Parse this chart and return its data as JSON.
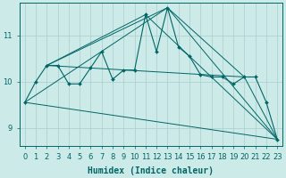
{
  "background_color": "#cceae8",
  "grid_color": "#aacccc",
  "line_color": "#006666",
  "xlabel": "Humidex (Indice chaleur)",
  "xlabel_fontsize": 7,
  "tick_fontsize": 6,
  "yticks": [
    9,
    10,
    11
  ],
  "xlim": [
    -0.5,
    23.5
  ],
  "ylim": [
    8.6,
    11.7
  ],
  "series": [
    {
      "x": [
        0,
        1,
        2,
        3,
        4,
        5,
        6,
        7,
        8,
        9,
        10,
        11,
        12,
        13,
        14,
        15,
        16,
        17,
        18,
        19,
        20,
        21,
        22,
        23
      ],
      "y": [
        9.55,
        10.0,
        10.35,
        10.35,
        9.95,
        9.95,
        10.3,
        10.65,
        10.05,
        10.25,
        10.25,
        11.45,
        10.65,
        11.6,
        10.75,
        10.55,
        10.15,
        10.1,
        10.1,
        9.95,
        10.1,
        10.1,
        9.55,
        8.75
      ],
      "marker": "D",
      "markersize": 2.0,
      "linewidth": 0.8
    },
    {
      "x": [
        0,
        13,
        23
      ],
      "y": [
        9.55,
        11.6,
        8.75
      ],
      "marker": null,
      "markersize": 0,
      "linewidth": 0.7
    },
    {
      "comment": "straight line: 2->11->23",
      "x": [
        2,
        11,
        23
      ],
      "y": [
        10.35,
        11.45,
        8.75
      ],
      "marker": null,
      "markersize": 0,
      "linewidth": 0.7
    },
    {
      "comment": "straight line: 2->13->20->23",
      "x": [
        2,
        13,
        20,
        23
      ],
      "y": [
        10.35,
        11.6,
        10.1,
        8.75
      ],
      "marker": null,
      "markersize": 0,
      "linewidth": 0.7
    },
    {
      "x": [
        2,
        20
      ],
      "y": [
        10.35,
        10.1
      ],
      "marker": null,
      "markersize": 0,
      "linewidth": 0.7
    },
    {
      "x": [
        0,
        23
      ],
      "y": [
        9.55,
        8.75
      ],
      "marker": null,
      "markersize": 0,
      "linewidth": 0.7
    }
  ]
}
